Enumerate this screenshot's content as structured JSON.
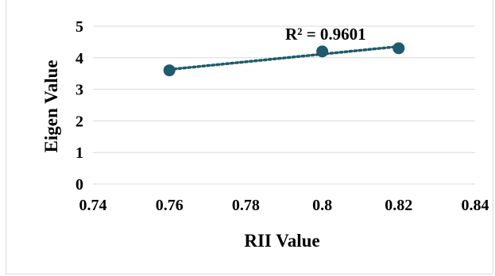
{
  "chart_data": {
    "type": "scatter",
    "xlabel": "RII Value",
    "ylabel": "Eigen Value",
    "xlim": [
      0.74,
      0.84
    ],
    "ylim": [
      0,
      5
    ],
    "x_ticks": [
      0.74,
      0.76,
      0.78,
      0.8,
      0.82,
      0.84
    ],
    "x_tick_labels": [
      "0.74",
      "0.76",
      "0.78",
      "0.8",
      "0.82",
      "0.84"
    ],
    "y_ticks": [
      0,
      1,
      2,
      3,
      4,
      5
    ],
    "y_tick_labels": [
      "0",
      "1",
      "2",
      "3",
      "4",
      "5"
    ],
    "grid": "horizontal",
    "series": [
      {
        "x": [
          0.76,
          0.8,
          0.82
        ],
        "y": [
          3.6,
          4.2,
          4.3
        ],
        "color": "#1f5a6e"
      }
    ],
    "trendline": {
      "kind": "linear",
      "style": "dotted",
      "color": "#1f5a6e"
    },
    "annotation": "R² = 0.9601"
  }
}
